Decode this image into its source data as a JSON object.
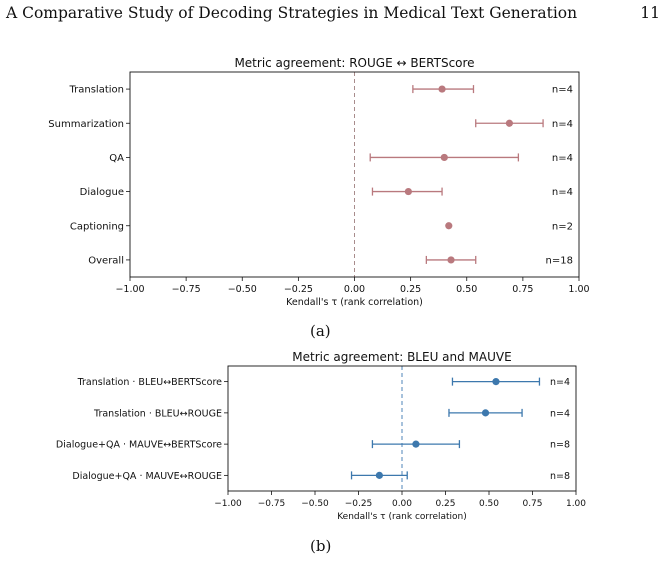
{
  "header": {
    "running_title": "A Comparative Study of Decoding Strategies in Medical Text Generation",
    "page_number": "11"
  },
  "captions": [
    "(a)",
    "(b)"
  ],
  "colors": {
    "panel_a": "#b9797e",
    "panel_b": "#3d78ad",
    "zero_a": "#a88c8c",
    "zero_b": "#4f86b8"
  },
  "chart_data": [
    {
      "type": "scatter",
      "title": "Metric agreement: ROUGE ↔ BERTScore",
      "xlabel": "Kendall's τ (rank correlation)",
      "ylabel": "",
      "xlim": [
        -1.0,
        1.0
      ],
      "xticks": [
        "−1.00",
        "−0.75",
        "−0.50",
        "−0.25",
        "0.00",
        "0.25",
        "0.50",
        "0.75",
        "1.00"
      ],
      "zero_line": true,
      "grid": false,
      "rows": [
        {
          "label": "Translation",
          "value": 0.39,
          "low": 0.26,
          "high": 0.53,
          "n": "n=4"
        },
        {
          "label": "Summarization",
          "value": 0.69,
          "low": 0.54,
          "high": 0.84,
          "n": "n=4"
        },
        {
          "label": "QA",
          "value": 0.4,
          "low": 0.07,
          "high": 0.73,
          "n": "n=4"
        },
        {
          "label": "Dialogue",
          "value": 0.24,
          "low": 0.08,
          "high": 0.39,
          "n": "n=4"
        },
        {
          "label": "Captioning",
          "value": 0.42,
          "low": null,
          "high": null,
          "n": "n=2"
        },
        {
          "label": "Overall",
          "value": 0.43,
          "low": 0.32,
          "high": 0.54,
          "n": "n=18"
        }
      ]
    },
    {
      "type": "scatter",
      "title": "Metric agreement: BLEU and MAUVE",
      "xlabel": "Kendall's τ (rank correlation)",
      "ylabel": "",
      "xlim": [
        -1.0,
        1.0
      ],
      "xticks": [
        "−1.00",
        "−0.75",
        "−0.50",
        "−0.25",
        "0.00",
        "0.25",
        "0.50",
        "0.75",
        "1.00"
      ],
      "zero_line": true,
      "grid": false,
      "rows": [
        {
          "label": "Translation · BLEU↔BERTScore",
          "value": 0.54,
          "low": 0.29,
          "high": 0.79,
          "n": "n=4"
        },
        {
          "label": "Translation · BLEU↔ROUGE",
          "value": 0.48,
          "low": 0.27,
          "high": 0.69,
          "n": "n=4"
        },
        {
          "label": "Dialogue+QA · MAUVE↔BERTScore",
          "value": 0.08,
          "low": -0.17,
          "high": 0.33,
          "n": "n=8"
        },
        {
          "label": "Dialogue+QA · MAUVE↔ROUGE",
          "value": -0.13,
          "low": -0.29,
          "high": 0.03,
          "n": "n=8"
        }
      ]
    }
  ]
}
